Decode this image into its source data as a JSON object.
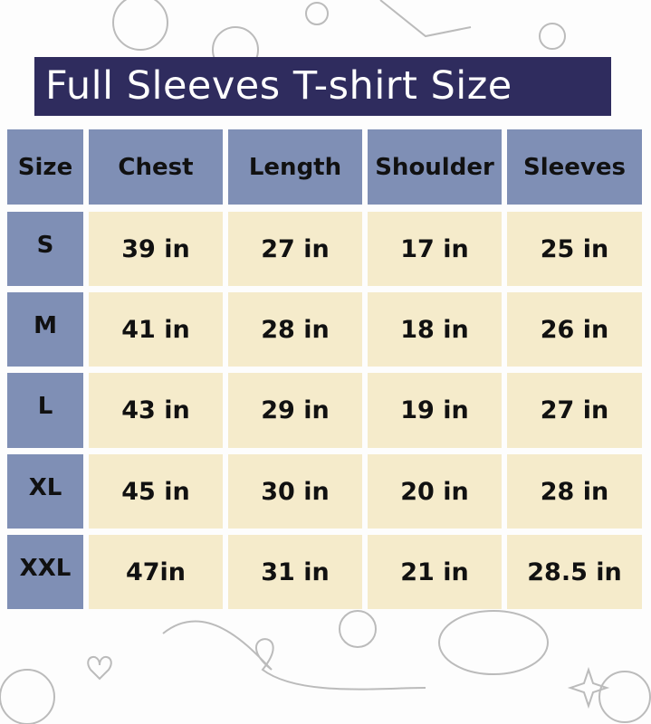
{
  "title": "Full Sleeves T-shirt Size",
  "colors": {
    "title_bg": "#2f2c5e",
    "header_bg": "#7f8fb5",
    "value_bg": "#f5ebcb"
  },
  "table": {
    "headers": [
      "Size",
      "Chest",
      "Length",
      "Shoulder",
      "Sleeves"
    ],
    "rows": [
      [
        "S",
        "39 in",
        "27 in",
        "17 in",
        "25 in"
      ],
      [
        "M",
        "41 in",
        "28 in",
        "18 in",
        "26 in"
      ],
      [
        "L",
        "43 in",
        "29 in",
        "19 in",
        "27 in"
      ],
      [
        "XL",
        "45 in",
        "30 in",
        "20 in",
        "28 in"
      ],
      [
        "XXL",
        "47in",
        "31 in",
        "21 in",
        "28.5 in"
      ]
    ]
  }
}
